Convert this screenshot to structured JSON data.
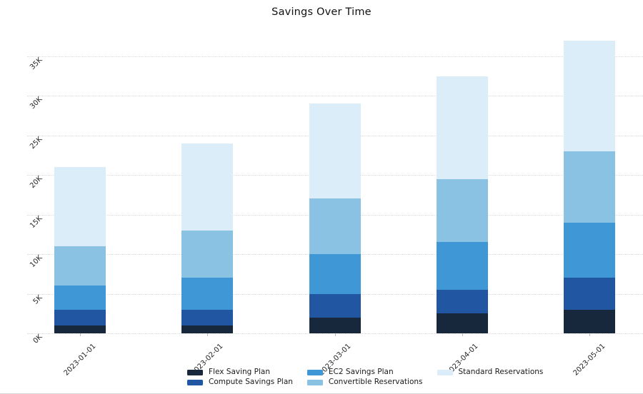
{
  "chart_data": {
    "type": "bar",
    "stacked": true,
    "title": "Savings Over Time",
    "xlabel": "",
    "ylabel": "",
    "categories": [
      "2023-01-01",
      "2023-02-01",
      "2023-03-01",
      "2023-04-01",
      "2023-05-01"
    ],
    "series": [
      {
        "name": "Flex Saving Plan",
        "color": "#17273C",
        "values": [
          1000,
          1000,
          2000,
          2500,
          3000
        ]
      },
      {
        "name": "Compute Savings Plan",
        "color": "#2156A3",
        "values": [
          2000,
          2000,
          3000,
          3000,
          4000
        ]
      },
      {
        "name": "EC2 Savings Plan",
        "color": "#4097D5",
        "values": [
          3000,
          4000,
          5000,
          6000,
          7000
        ]
      },
      {
        "name": "Convertible Reservations",
        "color": "#89C2E3",
        "values": [
          5000,
          6000,
          7000,
          8000,
          9000
        ]
      },
      {
        "name": "Standard Reservations",
        "color": "#DBEDF9",
        "values": [
          10000,
          11000,
          12000,
          13000,
          14000
        ]
      }
    ],
    "totals": [
      21000,
      24000,
      29000,
      32500,
      37000
    ],
    "y_ticks": [
      {
        "label": "0K",
        "value": 0
      },
      {
        "label": "5K",
        "value": 5000
      },
      {
        "label": "10K",
        "value": 10000
      },
      {
        "label": "15K",
        "value": 15000
      },
      {
        "label": "20K",
        "value": 20000
      },
      {
        "label": "25K",
        "value": 25000
      },
      {
        "label": "30K",
        "value": 30000
      },
      {
        "label": "35K",
        "value": 35000
      }
    ],
    "ylim": [
      0,
      38050
    ],
    "grid": "horizontal-dotted",
    "tick_label_rotation_deg": 45,
    "legend_position": "bottom-center",
    "legend_rows": 2
  }
}
